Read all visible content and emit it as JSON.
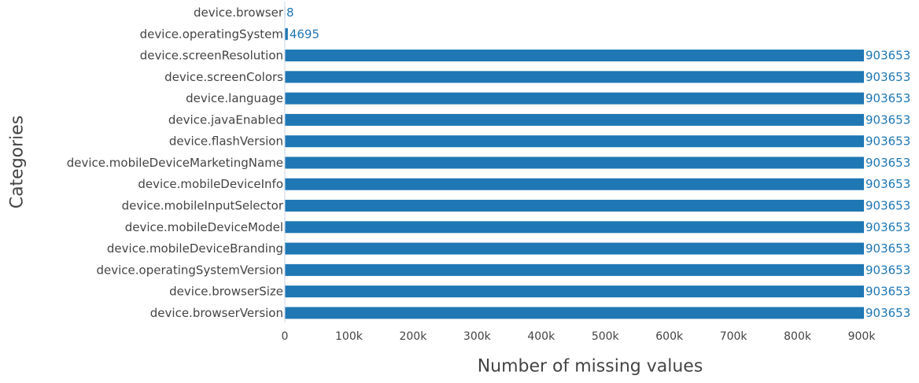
{
  "chart_data": {
    "type": "bar",
    "orientation": "horizontal",
    "categories": [
      "device.browser",
      "device.operatingSystem",
      "device.screenResolution",
      "device.screenColors",
      "device.language",
      "device.javaEnabled",
      "device.flashVersion",
      "device.mobileDeviceMarketingName",
      "device.mobileDeviceInfo",
      "device.mobileInputSelector",
      "device.mobileDeviceModel",
      "device.mobileDeviceBranding",
      "device.operatingSystemVersion",
      "device.browserSize",
      "device.browserVersion"
    ],
    "values": [
      8,
      4695,
      903653,
      903653,
      903653,
      903653,
      903653,
      903653,
      903653,
      903653,
      903653,
      903653,
      903653,
      903653,
      903653
    ],
    "value_labels": [
      "8",
      "4695",
      "903653",
      "903653",
      "903653",
      "903653",
      "903653",
      "903653",
      "903653",
      "903653",
      "903653",
      "903653",
      "903653",
      "903653",
      "903653"
    ],
    "xlabel": "Number of missing values",
    "ylabel": "Categories",
    "xlim": [
      0,
      903653
    ],
    "x_ticks": [
      0,
      100000,
      200000,
      300000,
      400000,
      500000,
      600000,
      700000,
      800000,
      900000
    ],
    "x_tick_labels": [
      "0",
      "100k",
      "200k",
      "300k",
      "400k",
      "500k",
      "600k",
      "700k",
      "800k",
      "900k"
    ],
    "grid": false,
    "legend": "none",
    "colors": {
      "bar": "#1f77b4",
      "value_label": "#1f77b4",
      "text": "#444444",
      "axis_line": "#c8d4e3"
    }
  }
}
